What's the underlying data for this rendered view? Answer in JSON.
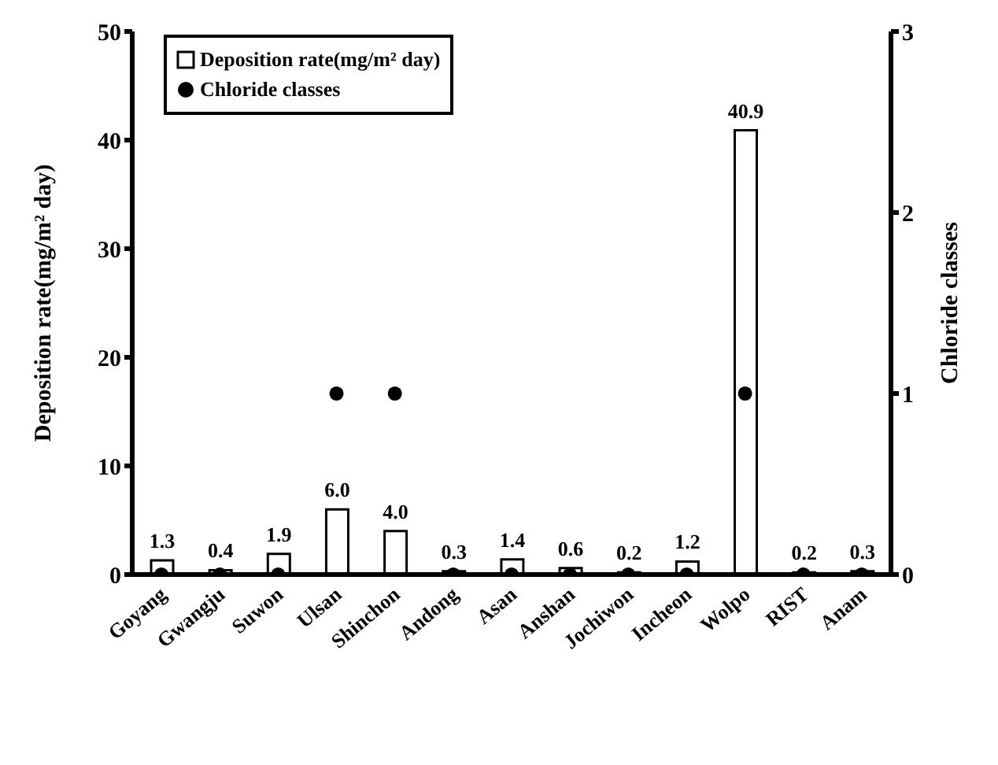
{
  "chart_data": {
    "type": "bar",
    "categories": [
      "Goyang",
      "Gwangju",
      "Suwon",
      "Ulsan",
      "Shinchon",
      "Andong",
      "Asan",
      "Anshan",
      "Jochiwon",
      "Incheon",
      "Wolpo",
      "RIST",
      "Anam"
    ],
    "series": [
      {
        "name": "Deposition rate(mg/m² day)",
        "color": "#ffffff",
        "values": [
          1.3,
          0.4,
          1.9,
          6.0,
          4.0,
          0.3,
          1.4,
          0.6,
          0.2,
          1.2,
          40.9,
          0.2,
          0.3
        ],
        "value_labels": [
          "1.3",
          "0.4",
          "1.9",
          "6.0",
          "4.0",
          "0.3",
          "1.4",
          "0.6",
          "0.2",
          "1.2",
          "40.9",
          "0.2",
          "0.3"
        ]
      },
      {
        "name": "Chloride classes",
        "type": "scatter",
        "axis": "y2",
        "color": "#000000",
        "x": [
          "Goyang",
          "Gwangju",
          "Suwon",
          "Ulsan",
          "Shinchon",
          "Andong",
          "Asan",
          "Anshan",
          "Jochiwon",
          "Incheon",
          "Wolpo",
          "RIST",
          "Anam"
        ],
        "values": [
          0,
          0,
          0,
          1,
          1,
          0,
          0,
          0,
          0,
          0,
          1,
          0,
          0
        ]
      }
    ],
    "ylabel": "Deposition rate(mg/m² day)",
    "y2label": "Chloride classes",
    "ylim": [
      0,
      50
    ],
    "yticks": [
      0,
      10,
      20,
      30,
      40,
      50
    ],
    "y2lim": [
      0,
      3
    ],
    "y2ticks": [
      0,
      1,
      2,
      3
    ],
    "marker": "circle",
    "legend": "top left"
  }
}
